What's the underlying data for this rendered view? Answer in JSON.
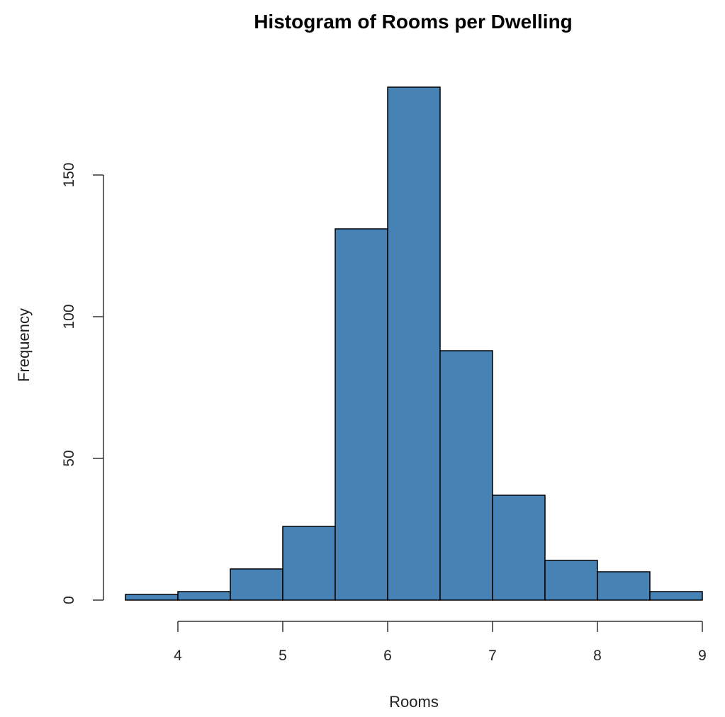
{
  "chart_data": {
    "type": "bar",
    "subtype": "histogram",
    "title": "Histogram of Rooms per Dwelling",
    "xlabel": "Rooms",
    "ylabel": "Frequency",
    "bin_edges": [
      3.5,
      4,
      4.5,
      5,
      5.5,
      6,
      6.5,
      7,
      7.5,
      8,
      8.5,
      9
    ],
    "categories": [
      "3.5-4",
      "4-4.5",
      "4.5-5",
      "5-5.5",
      "5.5-6",
      "6-6.5",
      "6.5-7",
      "7-7.5",
      "7.5-8",
      "8-8.5",
      "8.5-9"
    ],
    "values": [
      2,
      3,
      11,
      26,
      131,
      181,
      88,
      37,
      14,
      10,
      3
    ],
    "xticks": [
      4,
      5,
      6,
      7,
      8,
      9
    ],
    "yticks": [
      0,
      50,
      100,
      150
    ],
    "xlim": [
      3.5,
      9
    ],
    "ylim": [
      0,
      181
    ],
    "grid": false,
    "legend": null,
    "bar_color": "#4682b4",
    "edge_color": "#000000"
  }
}
